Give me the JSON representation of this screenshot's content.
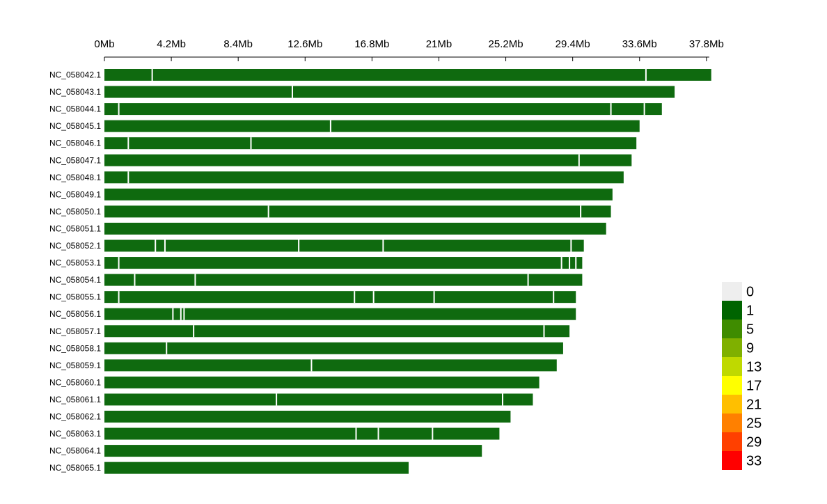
{
  "chart_data": {
    "type": "heatmap",
    "title": "",
    "xlabel": "",
    "ylabel": "",
    "x_unit": "Mb",
    "xlim": [
      0,
      38.2
    ],
    "x_ticks": [
      {
        "value": 0,
        "label": "0Mb"
      },
      {
        "value": 4.2,
        "label": "4.2Mb"
      },
      {
        "value": 8.4,
        "label": "8.4Mb"
      },
      {
        "value": 12.6,
        "label": "12.6Mb"
      },
      {
        "value": 16.8,
        "label": "16.8Mb"
      },
      {
        "value": 21,
        "label": "21Mb"
      },
      {
        "value": 25.2,
        "label": "25.2Mb"
      },
      {
        "value": 29.4,
        "label": "29.4Mb"
      },
      {
        "value": 33.6,
        "label": "33.6Mb"
      },
      {
        "value": 37.8,
        "label": "37.8Mb"
      }
    ],
    "chromosomes": [
      {
        "name": "NC_058042.1",
        "length": 38.1,
        "gaps": [
          3.0,
          34.0
        ]
      },
      {
        "name": "NC_058043.1",
        "length": 35.8,
        "gaps": [
          11.8
        ]
      },
      {
        "name": "NC_058044.1",
        "length": 35.0,
        "gaps": [
          0.9,
          31.8,
          33.9
        ]
      },
      {
        "name": "NC_058045.1",
        "length": 33.6,
        "gaps": [
          14.2
        ]
      },
      {
        "name": "NC_058046.1",
        "length": 33.4,
        "gaps": [
          1.5,
          9.2
        ]
      },
      {
        "name": "NC_058047.1",
        "length": 33.1,
        "gaps": [
          29.8
        ]
      },
      {
        "name": "NC_058048.1",
        "length": 32.6,
        "gaps": [
          1.5
        ]
      },
      {
        "name": "NC_058049.1",
        "length": 31.9,
        "gaps": []
      },
      {
        "name": "NC_058050.1",
        "length": 31.8,
        "gaps": [
          10.3,
          29.9
        ]
      },
      {
        "name": "NC_058051.1",
        "length": 31.5,
        "gaps": []
      },
      {
        "name": "NC_058052.1",
        "length": 30.1,
        "gaps": [
          3.2,
          3.8,
          12.2,
          17.5,
          29.3
        ]
      },
      {
        "name": "NC_058053.1",
        "length": 30.0,
        "gaps": [
          0.9,
          28.7,
          29.2,
          29.6
        ]
      },
      {
        "name": "NC_058054.1",
        "length": 30.0,
        "gaps": [
          1.9,
          5.7,
          26.6
        ]
      },
      {
        "name": "NC_058055.1",
        "length": 29.6,
        "gaps": [
          0.9,
          15.7,
          16.9,
          20.7,
          28.2
        ]
      },
      {
        "name": "NC_058056.1",
        "length": 29.6,
        "gaps": [
          4.3,
          4.8,
          5.0
        ]
      },
      {
        "name": "NC_058057.1",
        "length": 29.2,
        "gaps": [
          5.6,
          27.6
        ]
      },
      {
        "name": "NC_058058.1",
        "length": 28.8,
        "gaps": [
          3.9
        ]
      },
      {
        "name": "NC_058059.1",
        "length": 28.4,
        "gaps": [
          13.0
        ]
      },
      {
        "name": "NC_058060.1",
        "length": 27.3,
        "gaps": []
      },
      {
        "name": "NC_058061.1",
        "length": 26.9,
        "gaps": [
          10.8,
          25.0
        ]
      },
      {
        "name": "NC_058062.1",
        "length": 25.5,
        "gaps": []
      },
      {
        "name": "NC_058063.1",
        "length": 24.8,
        "gaps": [
          15.8,
          17.2,
          20.6
        ]
      },
      {
        "name": "NC_058064.1",
        "length": 23.7,
        "gaps": []
      },
      {
        "name": "NC_058065.1",
        "length": 19.1,
        "gaps": []
      }
    ],
    "legend": {
      "placement": "bottom-right",
      "bins": [
        {
          "label": "0",
          "color": "#EEEEEE"
        },
        {
          "label": "1",
          "color": "#006400"
        },
        {
          "label": "5",
          "color": "#3F8C00"
        },
        {
          "label": "9",
          "color": "#7FB000"
        },
        {
          "label": "13",
          "color": "#BFD900"
        },
        {
          "label": "17",
          "color": "#FFFF00"
        },
        {
          "label": "21",
          "color": "#FFBF00"
        },
        {
          "label": "25",
          "color": "#FF8000"
        },
        {
          "label": "29",
          "color": "#FF4000"
        },
        {
          "label": "33",
          "color": "#FF0000"
        }
      ]
    },
    "bar_color": "#0F6A0F",
    "gap_color": "#FFFFFF",
    "grid": false
  }
}
